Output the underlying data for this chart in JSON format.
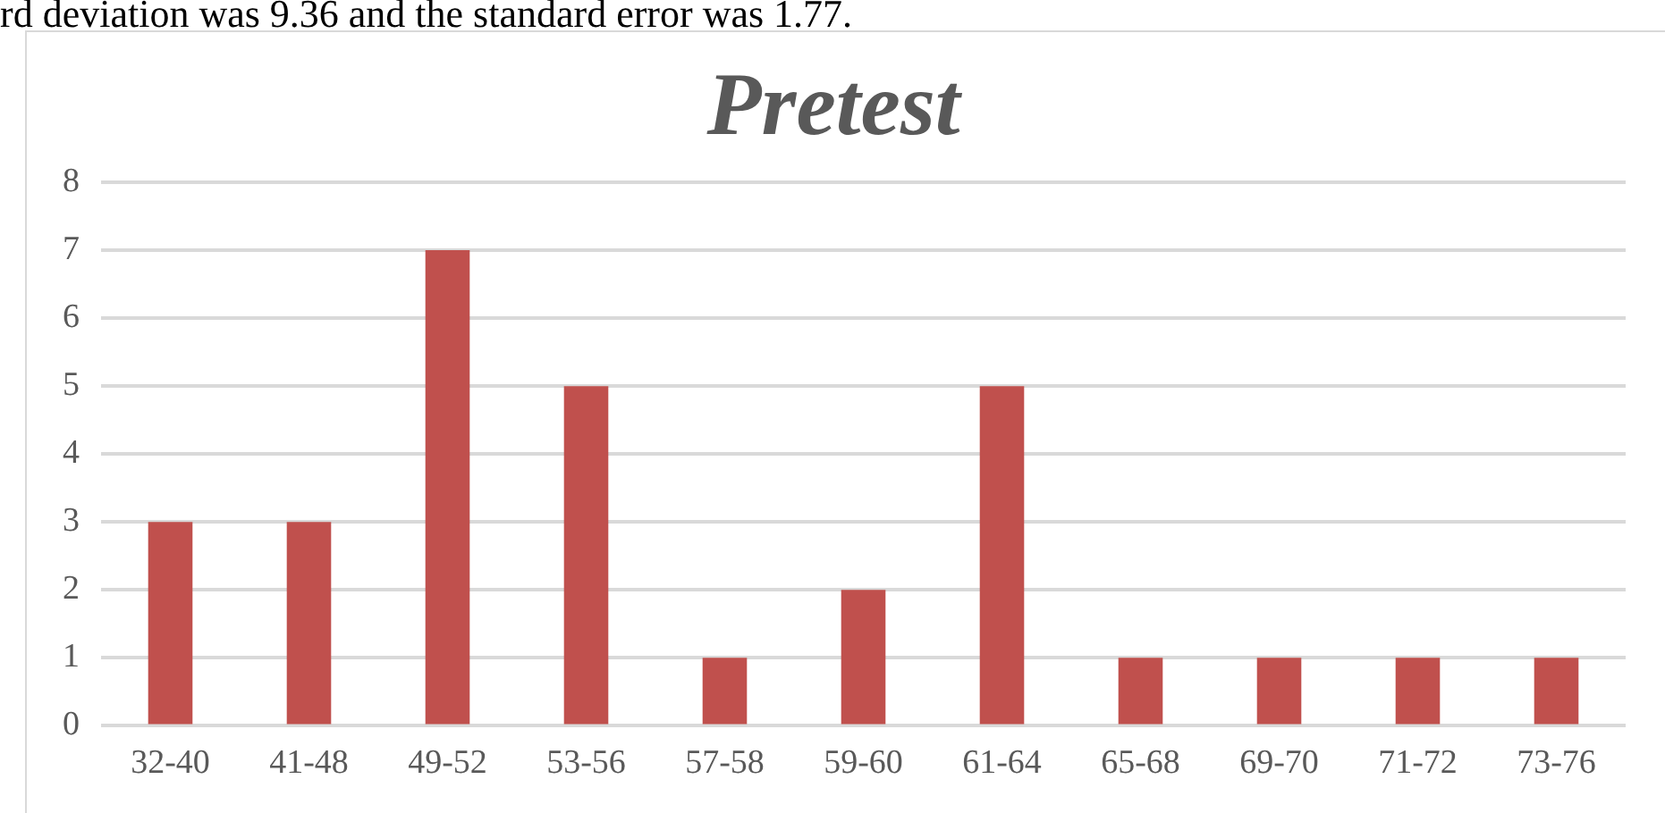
{
  "chart_data": {
    "type": "bar",
    "title": "Pretest",
    "annotations": [
      "rd deviation was 9.36 and the standard error was 1.77."
    ],
    "categories": [
      "32-40",
      "41-48",
      "49-52",
      "53-56",
      "57-58",
      "59-60",
      "61-64",
      "65-68",
      "69-70",
      "71-72",
      "73-76"
    ],
    "values": [
      3,
      3,
      7,
      5,
      1,
      2,
      5,
      1,
      1,
      1,
      1
    ],
    "color": "#c0504d",
    "ylim": [
      0,
      8
    ],
    "yticks": [
      0,
      1,
      2,
      3,
      4,
      5,
      6,
      7,
      8
    ],
    "grid": "y",
    "legend": false
  }
}
